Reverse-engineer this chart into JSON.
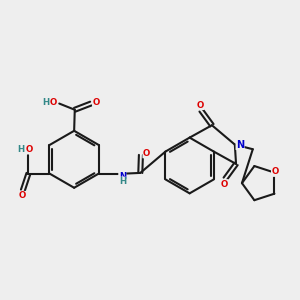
{
  "background_color": "#eeeeee",
  "bond_color": "#1a1a1a",
  "bond_lw": 1.5,
  "atom_colors": {
    "O": "#dd0000",
    "N": "#0000cc",
    "H": "#338888",
    "C": "#1a1a1a"
  },
  "fs_large": 7.0,
  "fs_small": 6.2
}
